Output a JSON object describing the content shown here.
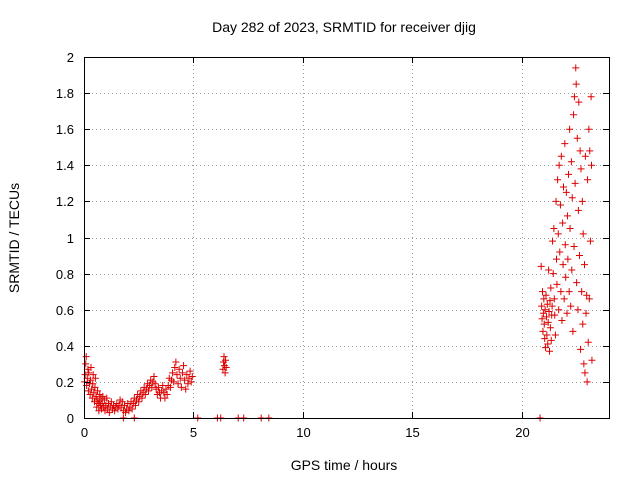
{
  "chart_data": {
    "type": "scatter",
    "title": "Day 282 of 2023, SRMTID for receiver djig",
    "xlabel": "GPS time / hours",
    "ylabel": "SRMTID / TECUs",
    "xlim": [
      0,
      24
    ],
    "ylim": [
      0,
      2
    ],
    "xticks": [
      "0",
      "5",
      "10",
      "15",
      "20"
    ],
    "xtick_values": [
      0,
      5,
      10,
      15,
      20
    ],
    "yticks": [
      "0",
      "0.2",
      "0.4",
      "0.6",
      "0.8",
      "1",
      "1.2",
      "1.4",
      "1.6",
      "1.8",
      "2"
    ],
    "ytick_values": [
      0,
      0.2,
      0.4,
      0.6,
      0.8,
      1.0,
      1.2,
      1.4,
      1.6,
      1.8,
      2.0
    ],
    "grid": true,
    "marker": "+",
    "color": "#dd0000",
    "series": [
      {
        "name": "SRMTID",
        "points": [
          [
            0.02,
            0.2
          ],
          [
            0.05,
            0.24
          ],
          [
            0.08,
            0.3
          ],
          [
            0.1,
            0.34
          ],
          [
            0.12,
            0.18
          ],
          [
            0.15,
            0.22
          ],
          [
            0.18,
            0.27
          ],
          [
            0.2,
            0.15
          ],
          [
            0.22,
            0.25
          ],
          [
            0.25,
            0.19
          ],
          [
            0.28,
            0.13
          ],
          [
            0.3,
            0.21
          ],
          [
            0.32,
            0.28
          ],
          [
            0.35,
            0.16
          ],
          [
            0.38,
            0.11
          ],
          [
            0.4,
            0.19
          ],
          [
            0.42,
            0.24
          ],
          [
            0.45,
            0.14
          ],
          [
            0.48,
            0.09
          ],
          [
            0.5,
            0.17
          ],
          [
            0.52,
            0.22
          ],
          [
            0.55,
            0.12
          ],
          [
            0.58,
            0.06
          ],
          [
            0.6,
            0.1
          ],
          [
            0.62,
            0.15
          ],
          [
            0.65,
            0.08
          ],
          [
            0.68,
            0.04
          ],
          [
            0.7,
            0.09
          ],
          [
            0.72,
            0.13
          ],
          [
            0.75,
            0.07
          ],
          [
            0.78,
            0.11
          ],
          [
            0.8,
            0.05
          ],
          [
            0.83,
            0.08
          ],
          [
            0.86,
            0.12
          ],
          [
            0.9,
            0.06
          ],
          [
            0.93,
            0.1
          ],
          [
            0.96,
            0.04
          ],
          [
            1.0,
            0.07
          ],
          [
            1.04,
            0.11
          ],
          [
            1.08,
            0.05
          ],
          [
            1.12,
            0.08
          ],
          [
            1.16,
            0.03
          ],
          [
            1.2,
            0.06
          ],
          [
            1.25,
            0.09
          ],
          [
            1.3,
            0.05
          ],
          [
            1.35,
            0.07
          ],
          [
            1.4,
            0.04
          ],
          [
            1.45,
            0.06
          ],
          [
            1.5,
            0.08
          ],
          [
            1.55,
            0.05
          ],
          [
            1.6,
            0.07
          ],
          [
            1.65,
            0.1
          ],
          [
            1.7,
            0.06
          ],
          [
            1.75,
            0.09
          ],
          [
            1.8,
            0.04
          ],
          [
            1.85,
            0.07
          ],
          [
            1.9,
            0.03
          ],
          [
            1.95,
            0.05
          ],
          [
            2.0,
            0.08
          ],
          [
            2.05,
            0.04
          ],
          [
            2.1,
            0.06
          ],
          [
            2.15,
            0.09
          ],
          [
            2.2,
            0.05
          ],
          [
            2.25,
            0.08
          ],
          [
            2.3,
            0.11
          ],
          [
            2.35,
            0.07
          ],
          [
            2.4,
            0.1
          ],
          [
            2.45,
            0.13
          ],
          [
            2.5,
            0.09
          ],
          [
            2.55,
            0.12
          ],
          [
            2.6,
            0.15
          ],
          [
            2.65,
            0.11
          ],
          [
            2.7,
            0.14
          ],
          [
            2.75,
            0.17
          ],
          [
            2.8,
            0.13
          ],
          [
            2.85,
            0.16
          ],
          [
            2.9,
            0.19
          ],
          [
            2.95,
            0.15
          ],
          [
            3.0,
            0.18
          ],
          [
            3.05,
            0.21
          ],
          [
            3.1,
            0.17
          ],
          [
            3.15,
            0.2
          ],
          [
            3.2,
            0.23
          ],
          [
            3.25,
            0.19
          ],
          [
            3.3,
            0.16
          ],
          [
            3.35,
            0.13
          ],
          [
            3.4,
            0.17
          ],
          [
            3.45,
            0.14
          ],
          [
            3.5,
            0.11
          ],
          [
            3.55,
            0.15
          ],
          [
            3.6,
            0.18
          ],
          [
            3.65,
            0.14
          ],
          [
            3.7,
            0.11
          ],
          [
            3.75,
            0.16
          ],
          [
            3.8,
            0.13
          ],
          [
            3.85,
            0.18
          ],
          [
            3.9,
            0.22
          ],
          [
            3.95,
            0.17
          ],
          [
            4.0,
            0.21
          ],
          [
            4.05,
            0.25
          ],
          [
            4.1,
            0.2
          ],
          [
            4.15,
            0.28
          ],
          [
            4.2,
            0.31
          ],
          [
            4.25,
            0.24
          ],
          [
            4.3,
            0.19
          ],
          [
            4.35,
            0.27
          ],
          [
            4.4,
            0.22
          ],
          [
            4.45,
            0.17
          ],
          [
            4.5,
            0.25
          ],
          [
            4.55,
            0.29
          ],
          [
            4.6,
            0.21
          ],
          [
            4.65,
            0.16
          ],
          [
            4.7,
            0.24
          ],
          [
            4.75,
            0.19
          ],
          [
            4.8,
            0.22
          ],
          [
            4.85,
            0.26
          ],
          [
            4.9,
            0.2
          ],
          [
            4.95,
            0.23
          ],
          [
            6.35,
            0.27
          ],
          [
            6.38,
            0.31
          ],
          [
            6.4,
            0.34
          ],
          [
            6.42,
            0.29
          ],
          [
            6.45,
            0.25
          ],
          [
            6.47,
            0.32
          ],
          [
            6.5,
            0.28
          ],
          [
            1.8,
            0.0
          ],
          [
            2.3,
            0.0
          ],
          [
            5.2,
            0.0
          ],
          [
            6.1,
            0.0
          ],
          [
            6.25,
            0.0
          ],
          [
            7.05,
            0.0
          ],
          [
            7.3,
            0.0
          ],
          [
            8.1,
            0.0
          ],
          [
            8.45,
            0.0
          ],
          [
            20.85,
            0.0
          ],
          [
            20.9,
            0.84
          ],
          [
            20.92,
            0.62
          ],
          [
            20.94,
            0.55
          ],
          [
            20.96,
            0.7
          ],
          [
            20.98,
            0.48
          ],
          [
            21.0,
            0.58
          ],
          [
            21.02,
            0.66
          ],
          [
            21.04,
            0.52
          ],
          [
            21.06,
            0.44
          ],
          [
            21.08,
            0.6
          ],
          [
            21.1,
            0.39
          ],
          [
            21.12,
            0.68
          ],
          [
            21.14,
            0.56
          ],
          [
            21.16,
            0.46
          ],
          [
            21.18,
            0.63
          ],
          [
            21.2,
            0.41
          ],
          [
            21.22,
            0.53
          ],
          [
            21.24,
            0.82
          ],
          [
            21.26,
            0.59
          ],
          [
            21.28,
            0.37
          ],
          [
            21.3,
            0.65
          ],
          [
            21.32,
            0.5
          ],
          [
            21.34,
            0.72
          ],
          [
            21.36,
            0.43
          ],
          [
            21.38,
            0.57
          ],
          [
            21.4,
            0.62
          ],
          [
            21.42,
            0.98
          ],
          [
            21.45,
            0.8
          ],
          [
            21.48,
            1.05
          ],
          [
            21.5,
            0.66
          ],
          [
            21.52,
            0.57
          ],
          [
            21.55,
            0.46
          ],
          [
            21.58,
            1.2
          ],
          [
            21.6,
            0.88
          ],
          [
            21.62,
            0.74
          ],
          [
            21.65,
            1.32
          ],
          [
            21.68,
            1.02
          ],
          [
            21.7,
            0.6
          ],
          [
            21.72,
            1.4
          ],
          [
            21.75,
            0.92
          ],
          [
            21.78,
            1.18
          ],
          [
            21.8,
            0.7
          ],
          [
            21.82,
            1.45
          ],
          [
            21.85,
            0.54
          ],
          [
            21.88,
            1.08
          ],
          [
            21.9,
            0.85
          ],
          [
            21.92,
            1.28
          ],
          [
            21.95,
            0.66
          ],
          [
            21.98,
            1.52
          ],
          [
            22.0,
            0.96
          ],
          [
            22.02,
            0.78
          ],
          [
            22.05,
            1.25
          ],
          [
            22.08,
            0.58
          ],
          [
            22.1,
            1.12
          ],
          [
            22.12,
            0.88
          ],
          [
            22.15,
            1.35
          ],
          [
            22.18,
            0.7
          ],
          [
            22.2,
            1.6
          ],
          [
            22.22,
            1.05
          ],
          [
            22.25,
            0.62
          ],
          [
            22.28,
            1.42
          ],
          [
            22.3,
            0.82
          ],
          [
            22.32,
            1.22
          ],
          [
            22.35,
            0.48
          ],
          [
            22.38,
            1.68
          ],
          [
            22.4,
            0.95
          ],
          [
            22.42,
            1.78
          ],
          [
            22.45,
            1.3
          ],
          [
            22.48,
            1.94
          ],
          [
            22.5,
            1.85
          ],
          [
            22.52,
            0.75
          ],
          [
            22.55,
            1.55
          ],
          [
            22.58,
            0.6
          ],
          [
            22.6,
            1.15
          ],
          [
            22.62,
            1.75
          ],
          [
            22.65,
            0.9
          ],
          [
            22.68,
            1.48
          ],
          [
            22.7,
            0.38
          ],
          [
            22.72,
            1.38
          ],
          [
            22.75,
            0.7
          ],
          [
            22.78,
            1.2
          ],
          [
            22.8,
            0.52
          ],
          [
            22.82,
            1.02
          ],
          [
            22.85,
            0.3
          ],
          [
            22.88,
            0.85
          ],
          [
            22.9,
            0.25
          ],
          [
            22.92,
            1.45
          ],
          [
            22.95,
            0.58
          ],
          [
            22.98,
            0.68
          ],
          [
            23.0,
            0.2
          ],
          [
            23.02,
            1.32
          ],
          [
            23.05,
            0.42
          ],
          [
            23.08,
            1.6
          ],
          [
            23.1,
            0.66
          ],
          [
            23.12,
            1.48
          ],
          [
            23.15,
            0.98
          ],
          [
            23.18,
            1.78
          ],
          [
            23.2,
            1.4
          ],
          [
            23.22,
            0.32
          ]
        ]
      }
    ]
  }
}
